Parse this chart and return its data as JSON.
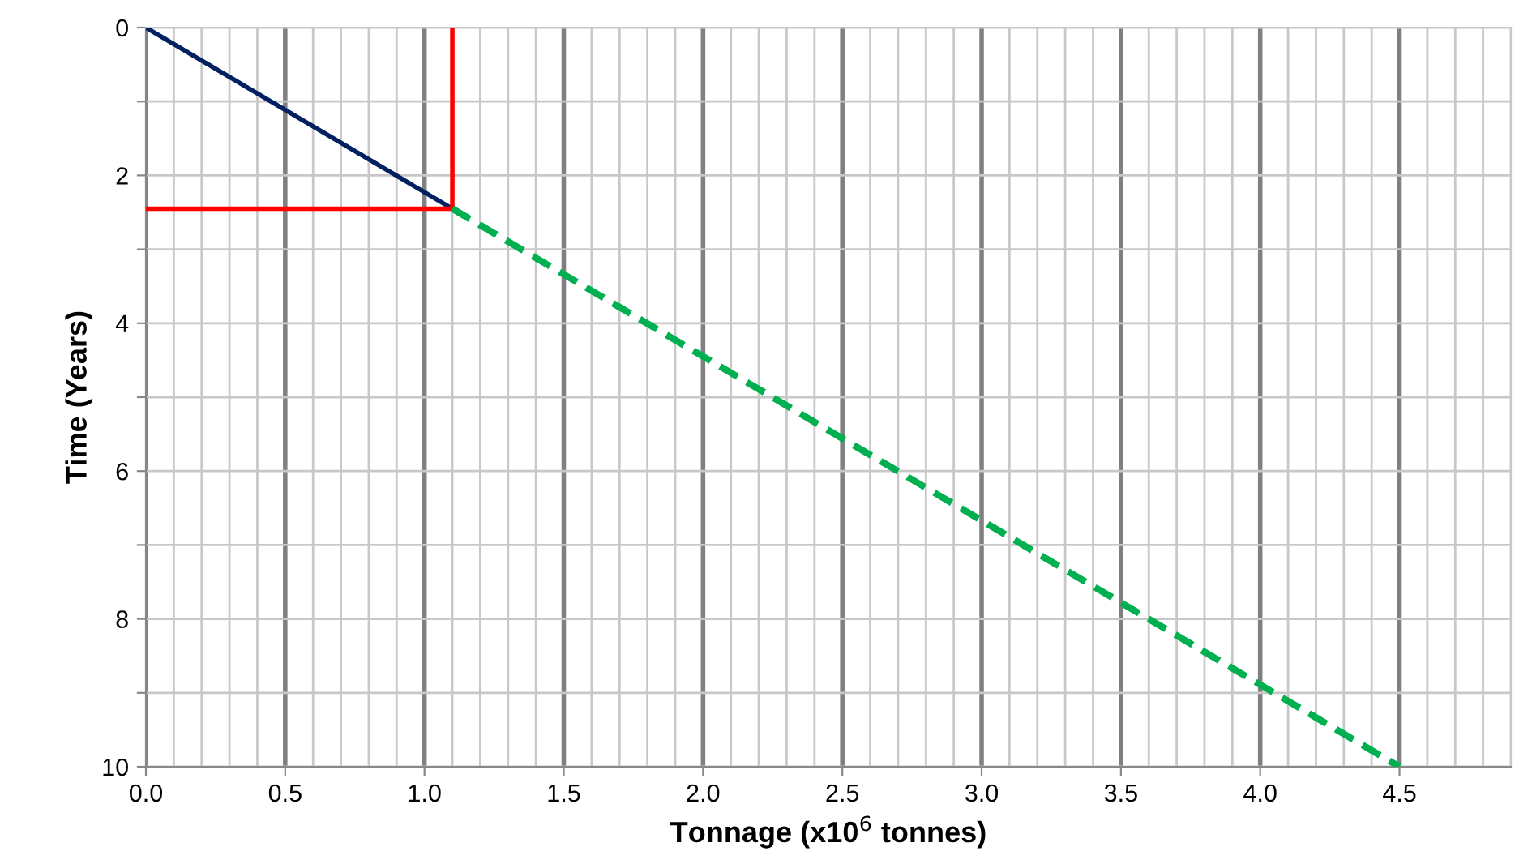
{
  "chart_data": {
    "type": "line",
    "xlabel": "Tonnage (x10$^{6}$ tonnes)",
    "ylabel": "Time (Years)",
    "xlim": [
      0,
      4.9
    ],
    "ylim": [
      10,
      0
    ],
    "xticks": [
      {
        "value": 0,
        "label": "0.0"
      },
      {
        "value": 0.1,
        "label": null
      },
      {
        "value": 0.2,
        "label": null
      },
      {
        "value": 0.3,
        "label": null
      },
      {
        "value": 0.4,
        "label": null
      },
      {
        "value": 0.5,
        "label": "0.5"
      },
      {
        "value": 0.6,
        "label": null
      },
      {
        "value": 0.7,
        "label": null
      },
      {
        "value": 0.8,
        "label": null
      },
      {
        "value": 0.9,
        "label": null
      },
      {
        "value": 1,
        "label": "1.0"
      },
      {
        "value": 1.1,
        "label": null
      },
      {
        "value": 1.2,
        "label": null
      },
      {
        "value": 1.3,
        "label": null
      },
      {
        "value": 1.4,
        "label": null
      },
      {
        "value": 1.5,
        "label": "1.5"
      },
      {
        "value": 1.6,
        "label": null
      },
      {
        "value": 1.7,
        "label": null
      },
      {
        "value": 1.8,
        "label": null
      },
      {
        "value": 1.9,
        "label": null
      },
      {
        "value": 2,
        "label": "2.0"
      },
      {
        "value": 2.1,
        "label": null
      },
      {
        "value": 2.2,
        "label": null
      },
      {
        "value": 2.3,
        "label": null
      },
      {
        "value": 2.4,
        "label": null
      },
      {
        "value": 2.5,
        "label": "2.5"
      },
      {
        "value": 2.6,
        "label": null
      },
      {
        "value": 2.7,
        "label": null
      },
      {
        "value": 2.8,
        "label": null
      },
      {
        "value": 2.9,
        "label": null
      },
      {
        "value": 3,
        "label": "3.0"
      },
      {
        "value": 3.1,
        "label": null
      },
      {
        "value": 3.2,
        "label": null
      },
      {
        "value": 3.3,
        "label": null
      },
      {
        "value": 3.4,
        "label": null
      },
      {
        "value": 3.5,
        "label": "3.5"
      },
      {
        "value": 3.6,
        "label": null
      },
      {
        "value": 3.7,
        "label": null
      },
      {
        "value": 3.8,
        "label": null
      },
      {
        "value": 3.9,
        "label": null
      },
      {
        "value": 4,
        "label": "4.0"
      },
      {
        "value": 4.1,
        "label": null
      },
      {
        "value": 4.2,
        "label": null
      },
      {
        "value": 4.3,
        "label": null
      },
      {
        "value": 4.4,
        "label": null
      },
      {
        "value": 4.5,
        "label": "4.5"
      },
      {
        "value": 4.6,
        "label": null
      },
      {
        "value": 4.7,
        "label": null
      },
      {
        "value": 4.8,
        "label": null
      },
      {
        "value": 4.9,
        "label": null
      }
    ],
    "yticks": [
      0,
      {
        "value": 1,
        "label": null
      },
      2,
      {
        "value": 3,
        "label": null
      },
      4,
      {
        "value": 5,
        "label": null
      },
      6,
      {
        "value": 7,
        "label": null
      },
      8,
      {
        "value": 9,
        "label": null
      },
      10
    ],
    "grid": true,
    "marker": "none",
    "series": [
      {
        "color": "#002060",
        "x": [
          0,
          1.1
        ],
        "values": [
          0,
          2.45
        ],
        "line_style": "solid"
      },
      {
        "color": "#ff0000",
        "x": [
          0,
          1.1,
          1.1
        ],
        "values": [
          2.45,
          2.45,
          0
        ],
        "line_style": "solid"
      },
      {
        "color": "#00b050",
        "x": [
          1.1,
          4.5
        ],
        "values": [
          2.45,
          10
        ],
        "line_style": "dashed"
      }
    ]
  }
}
